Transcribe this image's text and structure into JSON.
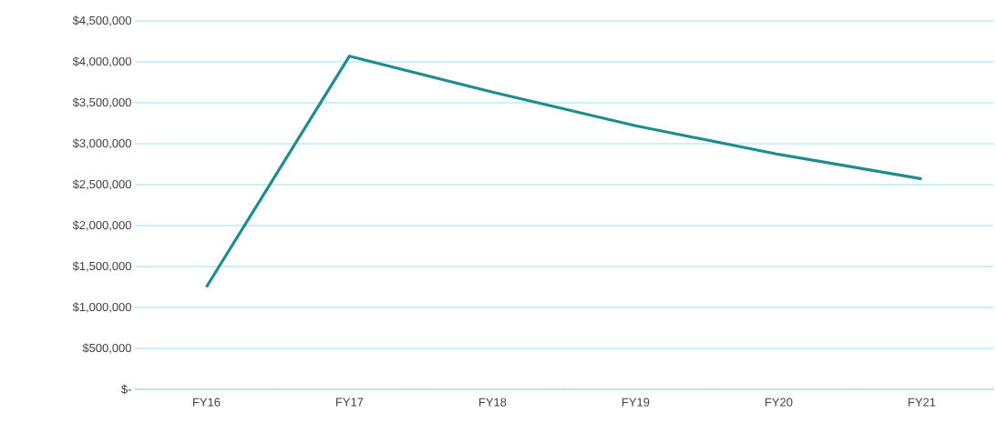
{
  "chart_data": {
    "type": "line",
    "categories": [
      "FY16",
      "FY17",
      "FY18",
      "FY19",
      "FY20",
      "FY21"
    ],
    "series": [
      {
        "color": "#1f8c8e",
        "values": [
          1250000,
          4070000,
          3630000,
          3220000,
          2870000,
          2570000
        ]
      }
    ],
    "ylim": [
      0,
      4500000
    ],
    "yticks": [
      {
        "value": 0,
        "label": "$-"
      },
      {
        "value": 500000,
        "label": "$500,000"
      },
      {
        "value": 1000000,
        "label": "$1,000,000"
      },
      {
        "value": 1500000,
        "label": "$1,500,000"
      },
      {
        "value": 2000000,
        "label": "$2,000,000"
      },
      {
        "value": 2500000,
        "label": "$2,500,000"
      },
      {
        "value": 3000000,
        "label": "$3,000,000"
      },
      {
        "value": 3500000,
        "label": "$3,500,000"
      },
      {
        "value": 4000000,
        "label": "$4,000,000"
      },
      {
        "value": 4500000,
        "label": "$4,500,000"
      }
    ],
    "grid": "y",
    "marker": "none",
    "line_style": "solid"
  }
}
